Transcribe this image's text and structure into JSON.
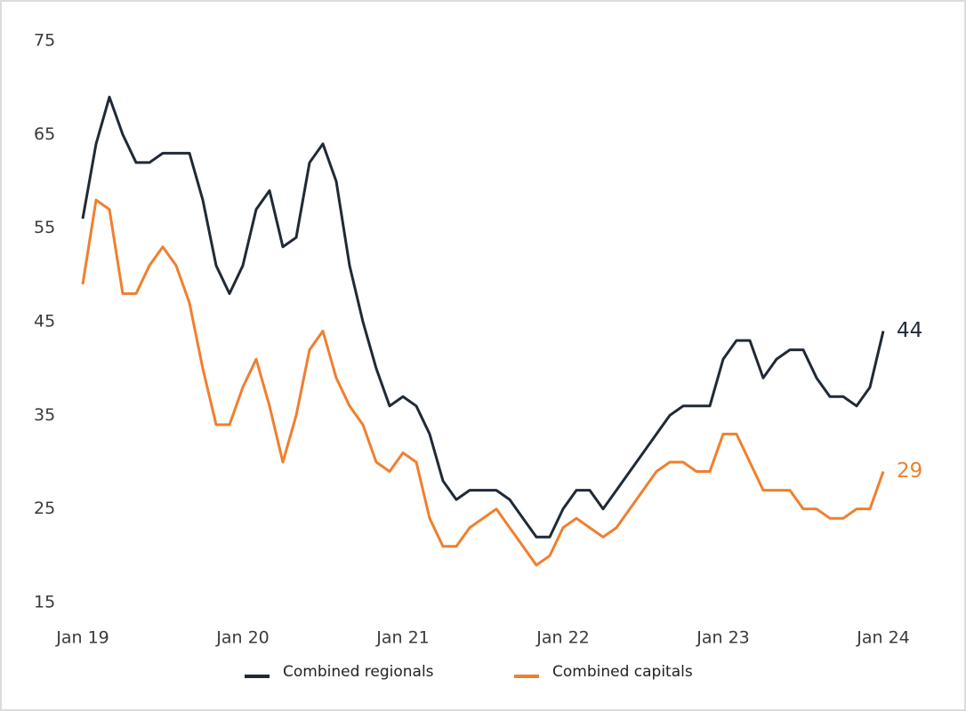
{
  "chart_data": {
    "type": "line",
    "categories": [
      "Jan 19",
      null,
      null,
      null,
      null,
      null,
      null,
      null,
      null,
      null,
      null,
      null,
      "Jan 20",
      null,
      null,
      null,
      null,
      null,
      null,
      null,
      null,
      null,
      null,
      null,
      "Jan 21",
      null,
      null,
      null,
      null,
      null,
      null,
      null,
      null,
      null,
      null,
      null,
      "Jan 22",
      null,
      null,
      null,
      null,
      null,
      null,
      null,
      null,
      null,
      null,
      null,
      "Jan 23",
      null,
      null,
      null,
      null,
      null,
      null,
      null,
      null,
      null,
      null,
      null,
      "Jan 24"
    ],
    "series": [
      {
        "name": "Combined regionals",
        "color": "#1f2a36",
        "values": [
          56,
          64,
          69,
          65,
          62,
          62,
          63,
          63,
          63,
          58,
          51,
          48,
          51,
          57,
          59,
          53,
          54,
          62,
          64,
          60,
          51,
          45,
          40,
          36,
          37,
          36,
          33,
          28,
          26,
          27,
          27,
          27,
          26,
          24,
          22,
          22,
          25,
          27,
          27,
          25,
          27,
          29,
          31,
          33,
          35,
          36,
          36,
          36,
          41,
          43,
          43,
          39,
          41,
          42,
          42,
          39,
          37,
          37,
          36,
          38,
          44
        ]
      },
      {
        "name": "Combined capitals",
        "color": "#f07f2e",
        "values": [
          49,
          58,
          57,
          48,
          48,
          51,
          53,
          51,
          47,
          40,
          34,
          34,
          38,
          41,
          36,
          30,
          35,
          42,
          44,
          39,
          36,
          34,
          30,
          29,
          31,
          30,
          24,
          21,
          21,
          23,
          24,
          25,
          23,
          21,
          19,
          20,
          23,
          24,
          23,
          22,
          23,
          25,
          27,
          29,
          30,
          30,
          29,
          29,
          33,
          33,
          30,
          27,
          27,
          27,
          25,
          25,
          24,
          24,
          25,
          25,
          29
        ]
      }
    ],
    "ylim": [
      15,
      75
    ],
    "yticks": [
      15,
      25,
      35,
      45,
      55,
      65,
      75
    ],
    "grid": false
  }
}
